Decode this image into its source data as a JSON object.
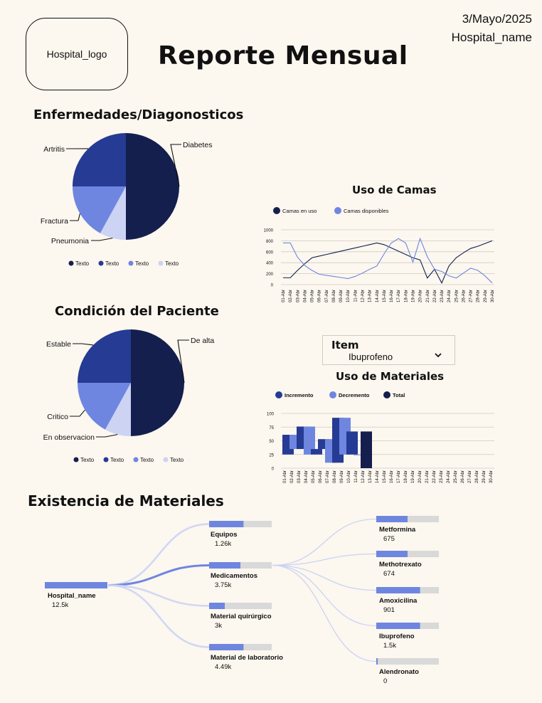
{
  "header": {
    "logo": "Hospital_logo",
    "title": "Reporte Mensual",
    "date": "3/Mayo/2025",
    "hospital": "Hospital_name"
  },
  "colors": {
    "navy": "#141f4d",
    "blue": "#253b94",
    "periwinkle": "#6f86e0",
    "lavender": "#ccd3f3",
    "grey": "#d9d9d9",
    "bg": "#fcf7ef"
  },
  "dropdown": {
    "label": "Item",
    "value": "Ibuprofeno",
    "icon": "chevron-down-icon"
  },
  "sections": {
    "existencia": "Existencia de Materiales"
  },
  "chart_data": [
    {
      "type": "pie",
      "title": "Enfermedades/Diagonosticos",
      "labels": [
        "Diabetes",
        "Pneumonia",
        "Fractura",
        "Artritis"
      ],
      "values": [
        50,
        8,
        17,
        25
      ],
      "colors": [
        "#141f4d",
        "#ccd3f3",
        "#6f86e0",
        "#253b94"
      ],
      "legend": [
        "Texto",
        "Texto",
        "Texto",
        "Texto"
      ],
      "legend_colors": [
        "#141f4d",
        "#253b94",
        "#6f86e0",
        "#ccd3f3"
      ]
    },
    {
      "type": "pie",
      "title": "Condición del Paciente",
      "labels": [
        "De alta",
        "En observacion",
        "Critico",
        "Estable"
      ],
      "values": [
        50,
        8,
        17,
        25
      ],
      "colors": [
        "#141f4d",
        "#ccd3f3",
        "#6f86e0",
        "#253b94"
      ],
      "legend": [
        "Texto",
        "Texto",
        "Texto",
        "Texto"
      ],
      "legend_colors": [
        "#141f4d",
        "#253b94",
        "#6f86e0",
        "#ccd3f3"
      ]
    },
    {
      "type": "line",
      "title": "Uso de Camas",
      "x": [
        "01-Abr",
        "02-Abr",
        "03-Abr",
        "04-Abr",
        "05-Abr",
        "06-Abr",
        "07-Abr",
        "08-Abr",
        "09-Abr",
        "10-Abr",
        "11-Abr",
        "12-Abr",
        "13-Abr",
        "14-Abr",
        "15-Abr",
        "16-Abr",
        "17-Abr",
        "18-Abr",
        "19-Abr",
        "20-Abr",
        "21-Abr",
        "22-Abr",
        "23-Abr",
        "24-Abr",
        "25-Abr",
        "26-Abr",
        "27-Abr",
        "28-Abr",
        "29-Abr",
        "30-Abr"
      ],
      "ylim": [
        0,
        1000
      ],
      "yticks": [
        0,
        200,
        400,
        600,
        800,
        1000
      ],
      "series": [
        {
          "name": "Camas en uso",
          "color": "#141f4d",
          "values": [
            125,
            125,
            260,
            380,
            490,
            520,
            550,
            580,
            610,
            640,
            670,
            700,
            730,
            760,
            730,
            670,
            610,
            550,
            490,
            450,
            120,
            280,
            30,
            340,
            490,
            580,
            660,
            700,
            750,
            800
          ]
        },
        {
          "name": "Camas disponibles",
          "color": "#6f86e0",
          "values": [
            760,
            760,
            500,
            350,
            260,
            190,
            170,
            150,
            130,
            110,
            150,
            210,
            280,
            340,
            560,
            760,
            840,
            760,
            410,
            840,
            510,
            280,
            240,
            160,
            120,
            210,
            300,
            260,
            160,
            30
          ]
        }
      ]
    },
    {
      "type": "bar",
      "subtype": "waterfall",
      "title": "Uso de Materiales",
      "categories": [
        "01-Abr",
        "02-Abr",
        "03-Abr",
        "04-Abr",
        "05-Abr",
        "06-Abr",
        "07-Abr",
        "08-Abr",
        "09-Abr",
        "10-Abr",
        "11-Abr",
        "12-Abr",
        "13-Abr",
        "14-Abr",
        "15-Abr",
        "16-Abr",
        "17-Abr",
        "18-Abr",
        "19-Abr",
        "20-Abr",
        "21-Abr",
        "22-Abr",
        "23-Abr",
        "24-Abr",
        "25-Abr",
        "26-Abr",
        "27-Abr",
        "28-Abr",
        "29-Abr",
        "30-Abr"
      ],
      "ylim": [
        0,
        100
      ],
      "yticks": [
        0,
        25,
        50,
        75,
        100
      ],
      "legend": [
        {
          "name": "Incremento",
          "color": "#253b94"
        },
        {
          "name": "Decremento",
          "color": "#6f86e0"
        },
        {
          "name": "Total",
          "color": "#141f4d"
        }
      ],
      "bars": [
        {
          "x": "01-Abr",
          "from": 25,
          "to": 61,
          "kind": "Incremento"
        },
        {
          "x": "02-Abr",
          "from": 35,
          "to": 61,
          "kind": "Decremento"
        },
        {
          "x": "03-Abr",
          "from": 35,
          "to": 76,
          "kind": "Incremento"
        },
        {
          "x": "04-Abr",
          "from": 25,
          "to": 76,
          "kind": "Decremento"
        },
        {
          "x": "05-Abr",
          "from": 25,
          "to": 35,
          "kind": "Incremento"
        },
        {
          "x": "06-Abr",
          "from": 35,
          "to": 53,
          "kind": "Incremento"
        },
        {
          "x": "07-Abr",
          "from": 10,
          "to": 53,
          "kind": "Decremento"
        },
        {
          "x": "08-Abr",
          "from": 10,
          "to": 92,
          "kind": "Incremento"
        },
        {
          "x": "09-Abr",
          "from": 25,
          "to": 92,
          "kind": "Decremento"
        },
        {
          "x": "10-Abr",
          "from": 25,
          "to": 67,
          "kind": "Incremento"
        },
        {
          "x": "11-Abr",
          "from": 25,
          "to": 25,
          "kind": "Decremento"
        },
        {
          "x": "12-Abr",
          "from": 0,
          "to": 67,
          "kind": "Total"
        }
      ]
    },
    {
      "type": "sankey",
      "title": "Existencia de Materiales",
      "root": {
        "name": "Hospital_name",
        "value": "12.5k",
        "fill": 1.0
      },
      "level1": [
        {
          "name": "Equipos",
          "value": "1.26k",
          "fill": 0.55
        },
        {
          "name": "Medicamentos",
          "value": "3.75k",
          "fill": 0.5
        },
        {
          "name": "Material quirúrgico",
          "value": "3k",
          "fill": 0.25
        },
        {
          "name": "Material de laboratorio",
          "value": "4.49k",
          "fill": 0.55
        }
      ],
      "level2": [
        {
          "name": "Metformina",
          "value": "675",
          "fill": 0.5
        },
        {
          "name": "Methotrexato",
          "value": "674",
          "fill": 0.5
        },
        {
          "name": "Amoxicilina",
          "value": "901",
          "fill": 0.7
        },
        {
          "name": "Ibuprofeno",
          "value": "1.5k",
          "fill": 0.7
        },
        {
          "name": "Alendronato",
          "value": "0",
          "fill": 0.02
        }
      ]
    }
  ]
}
